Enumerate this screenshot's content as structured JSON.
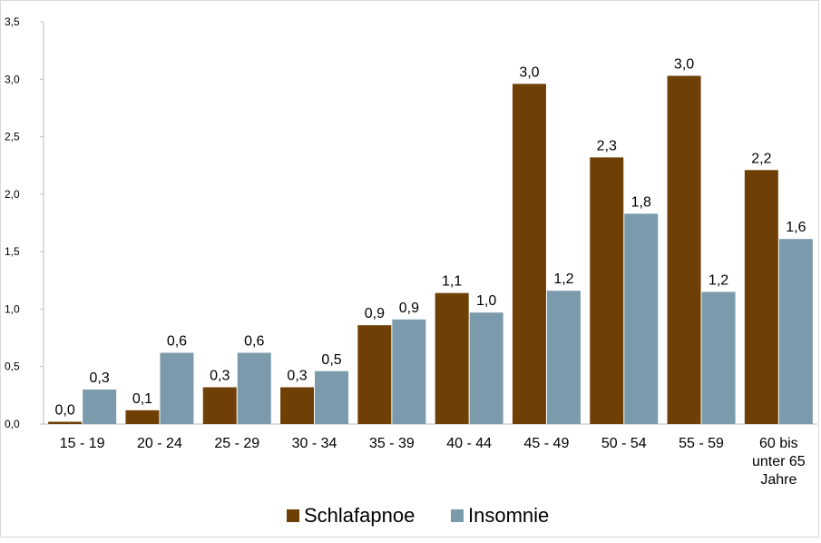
{
  "chart_data": {
    "type": "bar",
    "categories": [
      [
        "15 - 19"
      ],
      [
        "20 - 24"
      ],
      [
        "25 - 29"
      ],
      [
        "30 - 34"
      ],
      [
        "35 - 39"
      ],
      [
        "40 - 44"
      ],
      [
        "45 - 49"
      ],
      [
        "50 - 54"
      ],
      [
        "55 - 59"
      ],
      [
        "60 bis",
        "unter 65",
        "Jahre"
      ]
    ],
    "series": [
      {
        "name": "Schlafapnoe",
        "color": "#6e4005",
        "values": [
          0.02,
          0.12,
          0.32,
          0.32,
          0.86,
          1.14,
          2.96,
          2.32,
          3.03,
          2.21
        ],
        "labels": [
          "0,0",
          "0,1",
          "0,3",
          "0,3",
          "0,9",
          "1,1",
          "3,0",
          "2,3",
          "3,0",
          "2,2"
        ]
      },
      {
        "name": "Insomnie",
        "color": "#7b9aab",
        "values": [
          0.3,
          0.62,
          0.62,
          0.46,
          0.91,
          0.97,
          1.16,
          1.83,
          1.15,
          1.61
        ],
        "labels": [
          "0,3",
          "0,6",
          "0,6",
          "0,5",
          "0,9",
          "1,0",
          "1,2",
          "1,8",
          "1,2",
          "1,6"
        ]
      }
    ],
    "yticks": [
      "0,0",
      "0,5",
      "1,0",
      "1,5",
      "2,0",
      "2,5",
      "3,0",
      "3,5"
    ],
    "ylim": [
      0,
      3.5
    ],
    "ytick_step": 0.5,
    "grid": false,
    "legend_position": "bottom"
  }
}
